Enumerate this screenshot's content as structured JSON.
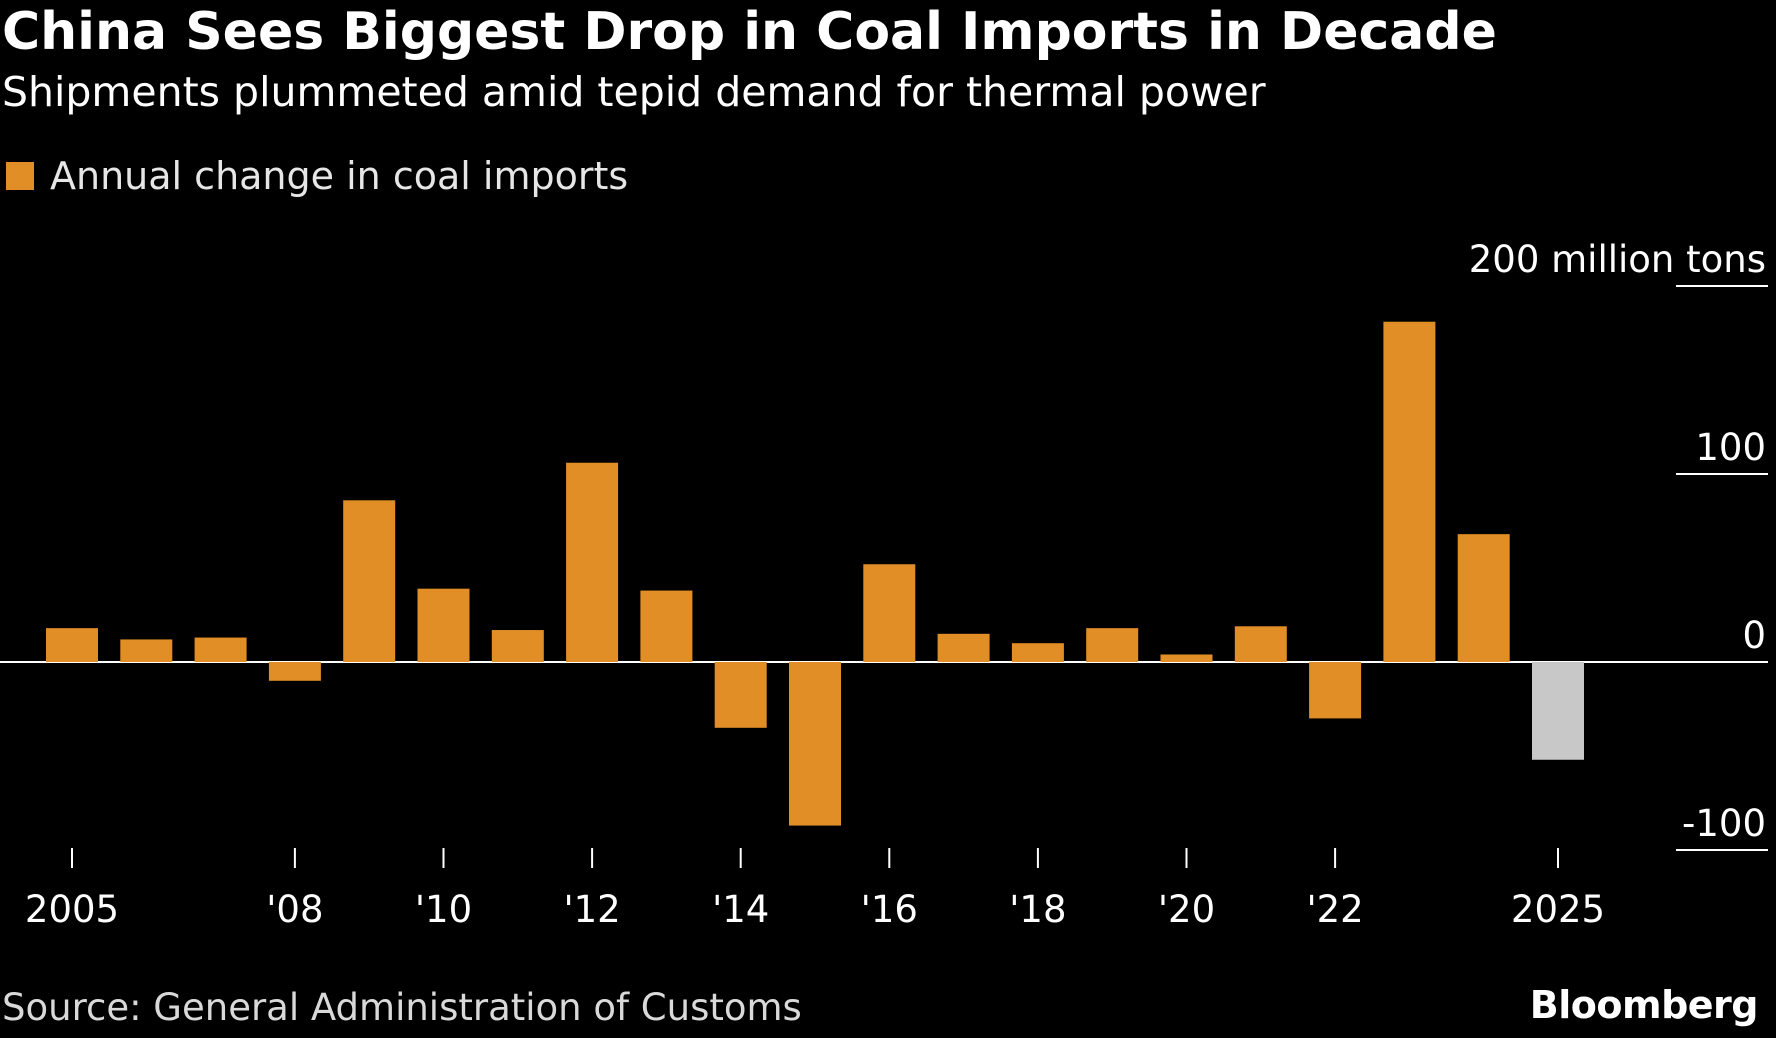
{
  "header": {
    "title": "China Sees Biggest Drop in Coal Imports in Decade",
    "subtitle": "Shipments plummeted amid tepid demand for thermal power"
  },
  "legend": {
    "label": "Annual change in coal imports",
    "color": "#e08e25"
  },
  "colors": {
    "bar": "#e08e25",
    "highlight_bar": "#c8c8c8",
    "background": "#000000",
    "axis": "#ffffff",
    "grid": "#ffffff"
  },
  "chart_data": {
    "type": "bar",
    "title": "China Sees Biggest Drop in Coal Imports in Decade",
    "subtitle": "Shipments plummeted amid tepid demand for thermal power",
    "xlabel": "",
    "ylabel": "",
    "units": "million tons",
    "ylim": [
      -100,
      200
    ],
    "yticks": [
      -100,
      0,
      100,
      200
    ],
    "ytick_labels": [
      "-100",
      "0",
      "100",
      "200 million tons"
    ],
    "xticks": [
      2005,
      2008,
      2010,
      2012,
      2014,
      2016,
      2018,
      2020,
      2022,
      2025
    ],
    "xtick_labels": [
      "2005",
      "'08",
      "'10",
      "'12",
      "'14",
      "'16",
      "'18",
      "'20",
      "'22",
      "2025"
    ],
    "grid": "horizontal",
    "legend_position": "top-left",
    "categories": [
      2005,
      2006,
      2007,
      2008,
      2009,
      2010,
      2011,
      2012,
      2013,
      2014,
      2015,
      2016,
      2017,
      2018,
      2019,
      2020,
      2021,
      2022,
      2023,
      2024,
      2025
    ],
    "series": [
      {
        "name": "Annual change in coal imports",
        "values": [
          18,
          12,
          13,
          -10,
          86,
          39,
          17,
          106,
          38,
          -35,
          -87,
          52,
          15,
          10,
          18,
          4,
          19,
          -30,
          181,
          68,
          -52
        ]
      }
    ],
    "highlighted_categories": [
      2025
    ]
  },
  "footer": {
    "source": "Source: General Administration of Customs",
    "brand": "Bloomberg"
  }
}
